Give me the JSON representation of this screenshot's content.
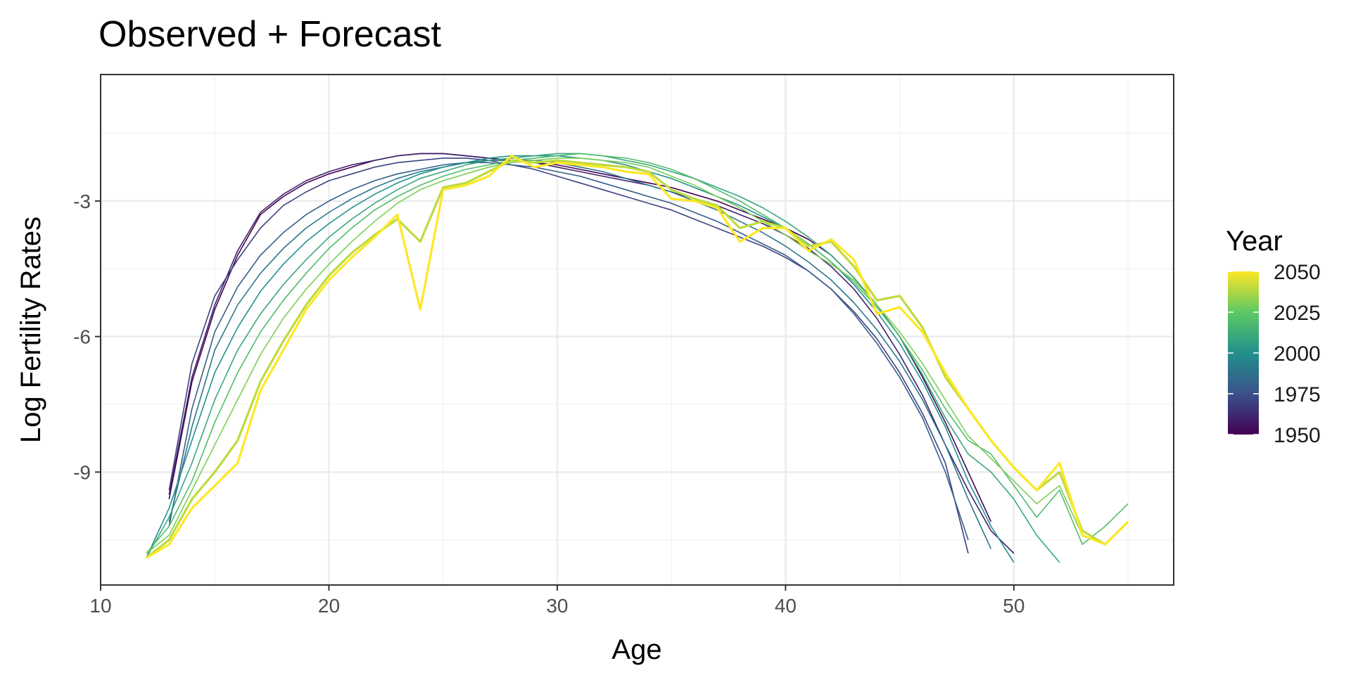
{
  "chart_data": {
    "type": "line",
    "title": "Observed + Forecast",
    "xlabel": "Age",
    "ylabel": "Log Fertility Rates",
    "xlim": [
      10,
      57
    ],
    "ylim": [
      -11.5,
      -0.2
    ],
    "x_ticks": [
      10,
      20,
      30,
      40,
      50
    ],
    "y_ticks": [
      -3,
      -6,
      -9
    ],
    "grid": true,
    "color_scale": {
      "name": "viridis",
      "stops": [
        "#440154",
        "#3b528b",
        "#21908c",
        "#5dc863",
        "#fde725"
      ],
      "range": [
        1950,
        2050
      ],
      "legend_title": "Year",
      "legend_ticks": [
        2050,
        2025,
        2000,
        1975,
        1950
      ],
      "legend_position": "right"
    },
    "series": [
      {
        "year": 1950,
        "x": [
          13,
          14,
          15,
          16,
          17,
          18,
          19,
          20,
          21,
          22,
          23,
          24,
          25,
          26,
          27,
          28,
          29,
          30,
          31,
          32,
          33,
          34,
          35,
          36,
          37,
          38,
          39,
          40,
          41,
          42,
          43,
          44,
          45,
          46,
          47,
          48,
          49
        ],
        "y": [
          -9.6,
          -7.0,
          -5.4,
          -4.2,
          -3.3,
          -2.9,
          -2.6,
          -2.4,
          -2.25,
          -2.1,
          -2.0,
          -1.95,
          -1.95,
          -2.0,
          -2.05,
          -2.1,
          -2.15,
          -2.2,
          -2.3,
          -2.4,
          -2.5,
          -2.6,
          -2.7,
          -2.85,
          -3.0,
          -3.2,
          -3.4,
          -3.6,
          -3.85,
          -4.2,
          -4.7,
          -5.3,
          -6.0,
          -6.9,
          -7.9,
          -9.0,
          -10.1
        ]
      },
      {
        "year": 1960,
        "x": [
          13,
          14,
          15,
          16,
          17,
          18,
          19,
          20,
          21,
          22,
          23,
          24,
          25,
          26,
          27,
          28,
          29,
          30,
          31,
          32,
          33,
          34,
          35,
          36,
          37,
          38,
          39,
          40,
          41,
          42,
          43,
          44,
          45,
          46,
          47,
          48,
          49,
          50
        ],
        "y": [
          -9.5,
          -6.9,
          -5.3,
          -4.1,
          -3.25,
          -2.85,
          -2.55,
          -2.35,
          -2.2,
          -2.1,
          -2.0,
          -1.95,
          -1.95,
          -2.0,
          -2.05,
          -2.1,
          -2.15,
          -2.25,
          -2.35,
          -2.45,
          -2.55,
          -2.65,
          -2.8,
          -2.95,
          -3.1,
          -3.3,
          -3.5,
          -3.75,
          -4.05,
          -4.45,
          -4.95,
          -5.6,
          -6.4,
          -7.3,
          -8.4,
          -9.4,
          -10.3,
          -10.8
        ]
      },
      {
        "year": 1970,
        "x": [
          13,
          14,
          15,
          16,
          17,
          18,
          19,
          20,
          21,
          22,
          23,
          24,
          25,
          26,
          27,
          28,
          29,
          30,
          31,
          32,
          33,
          34,
          35,
          36,
          37,
          38,
          39,
          40,
          41,
          42,
          43,
          44,
          45,
          46,
          47,
          48
        ],
        "y": [
          -9.4,
          -6.6,
          -5.1,
          -4.3,
          -3.6,
          -3.1,
          -2.8,
          -2.55,
          -2.4,
          -2.25,
          -2.15,
          -2.1,
          -2.05,
          -2.05,
          -2.1,
          -2.2,
          -2.3,
          -2.45,
          -2.6,
          -2.75,
          -2.9,
          -3.05,
          -3.2,
          -3.4,
          -3.6,
          -3.8,
          -4.0,
          -4.25,
          -4.55,
          -4.95,
          -5.45,
          -6.05,
          -6.8,
          -7.7,
          -8.8,
          -10.8
        ]
      },
      {
        "year": 1980,
        "x": [
          13,
          14,
          15,
          16,
          17,
          18,
          19,
          20,
          21,
          22,
          23,
          24,
          25,
          26,
          27,
          28,
          29,
          30,
          31,
          32,
          33,
          34,
          35,
          36,
          37,
          38,
          39,
          40,
          41,
          42,
          43,
          44,
          45,
          46,
          47,
          48
        ],
        "y": [
          -10.2,
          -7.6,
          -5.9,
          -4.9,
          -4.2,
          -3.7,
          -3.3,
          -3.0,
          -2.75,
          -2.55,
          -2.4,
          -2.3,
          -2.2,
          -2.15,
          -2.15,
          -2.2,
          -2.25,
          -2.35,
          -2.45,
          -2.6,
          -2.75,
          -2.9,
          -3.05,
          -3.25,
          -3.45,
          -3.7,
          -3.95,
          -4.2,
          -4.55,
          -4.95,
          -5.5,
          -6.15,
          -6.9,
          -7.8,
          -9.0,
          -10.5
        ]
      },
      {
        "year": 1990,
        "x": [
          13,
          14,
          15,
          16,
          17,
          18,
          19,
          20,
          21,
          22,
          23,
          24,
          25,
          26,
          27,
          28,
          29,
          30,
          31,
          32,
          33,
          34,
          35,
          36,
          37,
          38,
          39,
          40,
          41,
          42,
          43,
          44,
          45,
          46,
          47,
          48,
          49
        ],
        "y": [
          -10.1,
          -8.0,
          -6.3,
          -5.3,
          -4.6,
          -4.05,
          -3.6,
          -3.25,
          -2.95,
          -2.7,
          -2.5,
          -2.35,
          -2.25,
          -2.15,
          -2.1,
          -2.1,
          -2.1,
          -2.15,
          -2.25,
          -2.35,
          -2.5,
          -2.65,
          -2.8,
          -3.0,
          -3.2,
          -3.45,
          -3.7,
          -4.0,
          -4.35,
          -4.75,
          -5.25,
          -5.85,
          -6.55,
          -7.4,
          -8.4,
          -9.6,
          -10.7
        ]
      },
      {
        "year": 2000,
        "x": [
          12,
          13,
          14,
          15,
          16,
          17,
          18,
          19,
          20,
          21,
          22,
          23,
          24,
          25,
          26,
          27,
          28,
          29,
          30,
          31,
          32,
          33,
          34,
          35,
          36,
          37,
          38,
          39,
          40,
          41,
          42,
          43,
          44,
          45,
          46,
          47,
          48,
          49,
          50
        ],
        "y": [
          -10.9,
          -9.8,
          -8.3,
          -6.8,
          -5.8,
          -5.0,
          -4.4,
          -3.9,
          -3.5,
          -3.15,
          -2.85,
          -2.6,
          -2.4,
          -2.25,
          -2.15,
          -2.05,
          -2.0,
          -2.0,
          -2.0,
          -2.05,
          -2.1,
          -2.2,
          -2.35,
          -2.5,
          -2.7,
          -2.9,
          -3.1,
          -3.35,
          -3.6,
          -3.95,
          -4.35,
          -4.85,
          -5.45,
          -6.15,
          -7.0,
          -8.0,
          -9.2,
          -10.2,
          -11.0
        ]
      },
      {
        "year": 2010,
        "x": [
          12,
          13,
          14,
          15,
          16,
          17,
          18,
          19,
          20,
          21,
          22,
          23,
          24,
          25,
          26,
          27,
          28,
          29,
          30,
          31,
          32,
          33,
          34,
          35,
          36,
          37,
          38,
          39,
          40,
          41,
          42,
          43,
          44,
          45,
          46,
          47,
          48,
          49,
          50,
          51,
          52
        ],
        "y": [
          -10.9,
          -10.0,
          -8.8,
          -7.4,
          -6.3,
          -5.5,
          -4.85,
          -4.3,
          -3.8,
          -3.4,
          -3.05,
          -2.75,
          -2.5,
          -2.35,
          -2.2,
          -2.1,
          -2.05,
          -2.0,
          -1.95,
          -1.95,
          -2.0,
          -2.1,
          -2.2,
          -2.35,
          -2.5,
          -2.7,
          -2.9,
          -3.15,
          -3.45,
          -3.8,
          -4.2,
          -4.7,
          -5.3,
          -6.0,
          -6.85,
          -7.8,
          -8.6,
          -9.0,
          -9.6,
          -10.4,
          -11.0
        ]
      },
      {
        "year": 2020,
        "x": [
          12,
          13,
          14,
          15,
          16,
          17,
          18,
          19,
          20,
          21,
          22,
          23,
          24,
          25,
          26,
          27,
          28,
          29,
          30,
          31,
          32,
          33,
          34,
          35,
          36,
          37,
          38,
          39,
          40,
          41,
          42,
          43,
          44,
          45,
          46,
          47,
          48,
          49,
          50,
          51,
          52,
          53,
          54,
          55
        ],
        "y": [
          -10.8,
          -10.2,
          -9.2,
          -7.9,
          -6.8,
          -5.9,
          -5.2,
          -4.6,
          -4.05,
          -3.6,
          -3.2,
          -2.9,
          -2.65,
          -2.45,
          -2.3,
          -2.2,
          -2.1,
          -2.05,
          -2.0,
          -1.95,
          -2.0,
          -2.05,
          -2.15,
          -2.3,
          -2.5,
          -2.75,
          -3.0,
          -3.3,
          -3.6,
          -3.95,
          -4.35,
          -4.8,
          -5.35,
          -6.0,
          -6.75,
          -7.6,
          -8.3,
          -8.6,
          -9.3,
          -10.0,
          -9.4,
          -10.6,
          -10.2,
          -9.7
        ]
      },
      {
        "year": 2030,
        "x": [
          12,
          13,
          14,
          15,
          16,
          17,
          18,
          19,
          20,
          21,
          22,
          23,
          24,
          25,
          26,
          27,
          28,
          29,
          30,
          31,
          32,
          33,
          34,
          35,
          36,
          37,
          38,
          39,
          40,
          41,
          42,
          43,
          44,
          45,
          46,
          47,
          48,
          49,
          50,
          51,
          52,
          53,
          54,
          55
        ],
        "y": [
          -10.8,
          -10.4,
          -9.4,
          -8.4,
          -7.4,
          -6.4,
          -5.6,
          -4.95,
          -4.4,
          -3.9,
          -3.45,
          -3.05,
          -2.75,
          -2.55,
          -2.4,
          -2.25,
          -2.15,
          -2.1,
          -2.05,
          -2.05,
          -2.1,
          -2.15,
          -2.25,
          -2.45,
          -2.65,
          -2.9,
          -3.15,
          -3.45,
          -3.75,
          -4.1,
          -4.4,
          -4.75,
          -5.3,
          -5.9,
          -6.6,
          -7.4,
          -8.2,
          -8.7,
          -9.2,
          -9.7,
          -9.3,
          -10.4,
          -10.6,
          -10.1
        ]
      },
      {
        "year": 2040,
        "x": [
          12,
          13,
          14,
          15,
          16,
          17,
          18,
          19,
          20,
          21,
          22,
          23,
          24,
          25,
          26,
          27,
          28,
          29,
          30,
          31,
          32,
          33,
          34,
          35,
          36,
          37,
          38,
          39,
          40,
          41,
          42,
          43,
          44,
          45,
          46,
          47,
          48,
          49,
          50,
          51,
          52,
          53,
          54,
          55
        ],
        "y": [
          -10.9,
          -10.5,
          -9.6,
          -9.0,
          -8.3,
          -7.0,
          -6.1,
          -5.3,
          -4.65,
          -4.15,
          -3.75,
          -3.4,
          -3.9,
          -2.7,
          -2.6,
          -2.35,
          -2.1,
          -2.15,
          -2.1,
          -2.15,
          -2.2,
          -2.25,
          -2.35,
          -2.75,
          -2.95,
          -3.1,
          -3.6,
          -3.45,
          -3.6,
          -4.0,
          -3.9,
          -4.45,
          -5.2,
          -5.1,
          -5.8,
          -6.9,
          -7.6,
          -8.3,
          -8.9,
          -9.4,
          -9.0,
          -10.3,
          -10.6,
          -10.1
        ]
      },
      {
        "year": 2050,
        "x": [
          12,
          13,
          14,
          15,
          16,
          17,
          18,
          19,
          20,
          21,
          22,
          23,
          24,
          25,
          26,
          27,
          28,
          29,
          30,
          31,
          32,
          33,
          34,
          35,
          36,
          37,
          38,
          39,
          40,
          41,
          42,
          43,
          44,
          45,
          46,
          47,
          48,
          49,
          50,
          51,
          52,
          53,
          54,
          55
        ],
        "y": [
          -10.9,
          -10.6,
          -9.8,
          -9.3,
          -8.8,
          -7.2,
          -6.3,
          -5.4,
          -4.75,
          -4.25,
          -3.8,
          -3.3,
          -5.4,
          -2.75,
          -2.65,
          -2.45,
          -2.0,
          -2.25,
          -2.15,
          -2.2,
          -2.25,
          -2.35,
          -2.4,
          -2.95,
          -3.0,
          -3.15,
          -3.9,
          -3.6,
          -3.6,
          -4.1,
          -3.85,
          -4.3,
          -5.5,
          -5.35,
          -5.9,
          -6.8,
          -7.6,
          -8.3,
          -8.9,
          -9.4,
          -8.8,
          -10.4,
          -10.6,
          -10.1
        ]
      }
    ]
  }
}
